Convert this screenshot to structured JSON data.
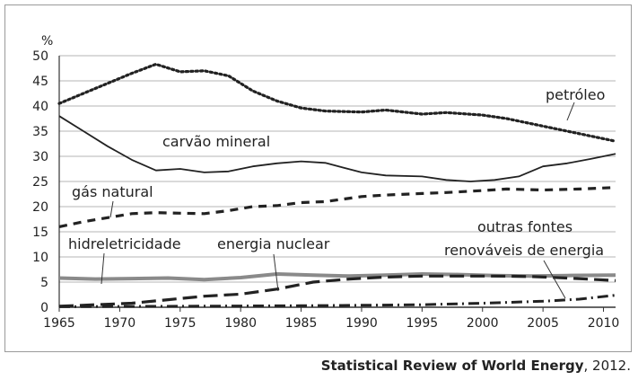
{
  "source": {
    "title": "Statistical Review of World Energy",
    "suffix": ", 2012."
  },
  "chart_data": {
    "type": "line",
    "title": "",
    "xlabel": "",
    "ylabel": "%",
    "xlim": [
      1965,
      2011
    ],
    "ylim": [
      0,
      50
    ],
    "xticks": [
      1965,
      1970,
      1975,
      1980,
      1985,
      1990,
      1995,
      2000,
      2005,
      2010
    ],
    "yticks": [
      0,
      5,
      10,
      15,
      20,
      25,
      30,
      35,
      40,
      45,
      50
    ],
    "grid": "horizontal",
    "legend": "none",
    "series": [
      {
        "name": "petróleo",
        "style": "dotted",
        "color": "#222222",
        "x": [
          1965,
          1968,
          1971,
          1973,
          1975,
          1977,
          1979,
          1981,
          1983,
          1985,
          1987,
          1990,
          1992,
          1995,
          1997,
          2000,
          2002,
          2005,
          2008,
          2011
        ],
        "y": [
          40.5,
          43.5,
          46.5,
          48.3,
          46.8,
          47,
          46,
          43,
          41,
          39.6,
          39,
          38.8,
          39.2,
          38.4,
          38.7,
          38.2,
          37.5,
          36,
          34.5,
          33
        ]
      },
      {
        "name": "carvão mineral",
        "style": "solid",
        "color": "#222222",
        "x": [
          1965,
          1967,
          1969,
          1971,
          1973,
          1975,
          1977,
          1979,
          1981,
          1983,
          1985,
          1987,
          1990,
          1992,
          1995,
          1997,
          1999,
          2001,
          2003,
          2005,
          2007,
          2009,
          2011
        ],
        "y": [
          38,
          35,
          32,
          29.3,
          27.2,
          27.5,
          26.8,
          27,
          28,
          28.6,
          29,
          28.7,
          26.8,
          26.2,
          26,
          25.3,
          25,
          25.3,
          26,
          28,
          28.6,
          29.5,
          30.5
        ]
      },
      {
        "name": "gás natural",
        "style": "dashed",
        "color": "#222222",
        "x": [
          1965,
          1967,
          1969,
          1971,
          1973,
          1975,
          1977,
          1979,
          1981,
          1983,
          1985,
          1987,
          1990,
          1992,
          1995,
          1997,
          2000,
          2002,
          2005,
          2008,
          2011
        ],
        "y": [
          16,
          17,
          17.8,
          18.6,
          18.8,
          18.7,
          18.6,
          19.2,
          20,
          20.2,
          20.8,
          21,
          22,
          22.3,
          22.6,
          22.8,
          23.2,
          23.5,
          23.3,
          23.5,
          23.8
        ]
      },
      {
        "name": "hidreletricidade",
        "style": "solid-gray",
        "color": "#8a8a8a",
        "x": [
          1965,
          1968,
          1971,
          1974,
          1977,
          1980,
          1983,
          1986,
          1989,
          1992,
          1995,
          1998,
          2001,
          2004,
          2007,
          2011
        ],
        "y": [
          5.8,
          5.6,
          5.7,
          5.8,
          5.5,
          5.9,
          6.6,
          6.4,
          6.2,
          6.4,
          6.6,
          6.5,
          6.3,
          6.2,
          6.3,
          6.4
        ]
      },
      {
        "name": "energia nuclear",
        "style": "long-dash",
        "color": "#222222",
        "x": [
          1965,
          1968,
          1971,
          1974,
          1977,
          1980,
          1983,
          1986,
          1989,
          1992,
          1995,
          1998,
          2001,
          2004,
          2007,
          2011
        ],
        "y": [
          0.2,
          0.5,
          0.8,
          1.5,
          2.2,
          2.6,
          3.6,
          5,
          5.6,
          6,
          6.2,
          6.2,
          6.2,
          6.1,
          5.8,
          5.3
        ]
      },
      {
        "name": "outras fontes renováveis de energia",
        "style": "dash-dot",
        "color": "#222222",
        "x": [
          1965,
          1975,
          1985,
          1990,
          1995,
          2000,
          2005,
          2008,
          2011
        ],
        "y": [
          0.1,
          0.2,
          0.3,
          0.4,
          0.5,
          0.8,
          1.2,
          1.6,
          2.4
        ]
      }
    ],
    "annotations": [
      {
        "text": "petróleo",
        "series": 0
      },
      {
        "text": "carvão mineral",
        "series": 1
      },
      {
        "text": "gás natural",
        "series": 2
      },
      {
        "text": "hidreletricidade",
        "series": 3
      },
      {
        "text": "energia nuclear",
        "series": 4
      },
      {
        "text": "outras fontes",
        "series": 5
      },
      {
        "text": "renováveis de energia",
        "series": 5
      }
    ]
  }
}
